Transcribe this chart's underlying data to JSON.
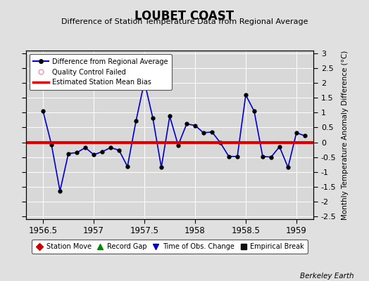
{
  "title": "LOUBET COAST",
  "subtitle": "Difference of Station Temperature Data from Regional Average",
  "ylabel_right": "Monthly Temperature Anomaly Difference (°C)",
  "xlim": [
    1956.33,
    1959.17
  ],
  "ylim": [
    -2.6,
    3.1
  ],
  "yticks": [
    -2.5,
    -2,
    -1.5,
    -1,
    -0.5,
    0,
    0.5,
    1,
    1.5,
    2,
    2.5,
    3
  ],
  "xticks": [
    1956.5,
    1957.0,
    1957.5,
    1958.0,
    1958.5,
    1959.0
  ],
  "xtick_labels": [
    "1956.5",
    "1957",
    "1957.5",
    "1958",
    "1958.5",
    "1959"
  ],
  "background_color": "#e0e0e0",
  "plot_bg_color": "#d8d8d8",
  "grid_color": "#ffffff",
  "mean_bias": 0.0,
  "line_color": "#0000cc",
  "line_width": 1.2,
  "marker_color": "#000000",
  "marker_size": 3.5,
  "bias_color": "#dd0000",
  "bias_linewidth": 3.0,
  "time_series_x": [
    1956.5,
    1956.583,
    1956.667,
    1956.75,
    1956.833,
    1956.917,
    1957.0,
    1957.083,
    1957.167,
    1957.25,
    1957.333,
    1957.417,
    1957.5,
    1957.583,
    1957.667,
    1957.75,
    1957.833,
    1957.917,
    1958.0,
    1958.083,
    1958.167,
    1958.25,
    1958.333,
    1958.417,
    1958.5,
    1958.583,
    1958.667,
    1958.75,
    1958.833,
    1958.917,
    1959.0,
    1959.083
  ],
  "time_series_y": [
    1.05,
    -0.08,
    -1.65,
    -0.38,
    -0.35,
    -0.18,
    -0.42,
    -0.32,
    -0.18,
    -0.27,
    -0.82,
    0.72,
    2.05,
    0.82,
    -0.85,
    0.88,
    -0.1,
    0.62,
    0.57,
    0.32,
    0.35,
    -0.02,
    -0.48,
    -0.48,
    1.6,
    1.05,
    -0.48,
    -0.5,
    -0.15,
    -0.85,
    0.32,
    0.22
  ],
  "footer": "Berkeley Earth",
  "legend1_labels": [
    "Difference from Regional Average",
    "Quality Control Failed",
    "Estimated Station Mean Bias"
  ],
  "legend2_labels": [
    "Station Move",
    "Record Gap",
    "Time of Obs. Change",
    "Empirical Break"
  ],
  "legend2_colors": [
    "#cc0000",
    "#008800",
    "#0000cc",
    "#111111"
  ],
  "legend2_markers": [
    "D",
    "^",
    "v",
    "s"
  ]
}
